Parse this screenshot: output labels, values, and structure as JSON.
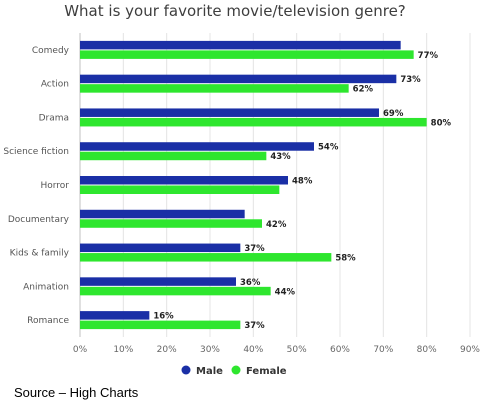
{
  "chart_data": {
    "type": "bar",
    "orientation": "horizontal",
    "title": "What is your favorite movie/television genre?",
    "categories": [
      "Comedy",
      "Action",
      "Drama",
      "Science fiction",
      "Horror",
      "Documentary",
      "Kids & family",
      "Animation",
      "Romance"
    ],
    "series": [
      {
        "name": "Male",
        "color": "#1a2fa6",
        "values": [
          74,
          73,
          69,
          54,
          48,
          38,
          37,
          36,
          16
        ],
        "labels": [
          "",
          "73%",
          "69%",
          "54%",
          "48%",
          "",
          "37%",
          "36%",
          "16%"
        ]
      },
      {
        "name": "Female",
        "color": "#2ee62e",
        "values": [
          77,
          62,
          80,
          43,
          46,
          42,
          58,
          44,
          37
        ],
        "labels": [
          "77%",
          "62%",
          "80%",
          "43%",
          "",
          "42%",
          "58%",
          "44%",
          "37%"
        ]
      }
    ],
    "xlim": [
      0,
      90
    ],
    "xticks": [
      "0%",
      "10%",
      "20%",
      "30%",
      "40%",
      "50%",
      "60%",
      "70%",
      "80%",
      "90%"
    ],
    "grid": true,
    "legend_position": "bottom"
  },
  "source_note": "Source – High Charts"
}
